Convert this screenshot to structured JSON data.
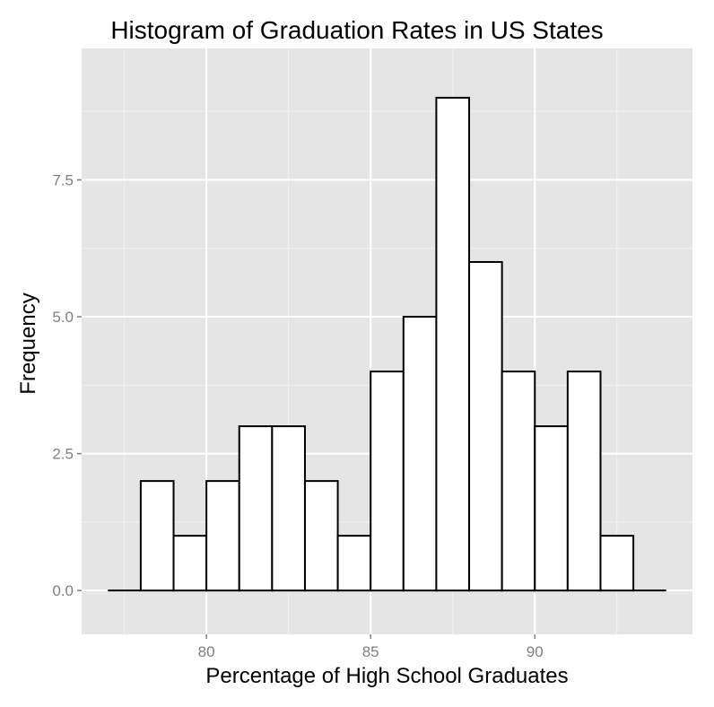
{
  "chart_data": {
    "type": "bar",
    "title": "Histogram of Graduation Rates in US States",
    "xlabel": "Percentage of High School Graduates",
    "ylabel": "Frequency",
    "bin_width": 1,
    "bins": [
      {
        "start": 77,
        "end": 78,
        "count": 0
      },
      {
        "start": 78,
        "end": 79,
        "count": 2
      },
      {
        "start": 79,
        "end": 80,
        "count": 1
      },
      {
        "start": 80,
        "end": 81,
        "count": 2
      },
      {
        "start": 81,
        "end": 82,
        "count": 3
      },
      {
        "start": 82,
        "end": 83,
        "count": 3
      },
      {
        "start": 83,
        "end": 84,
        "count": 2
      },
      {
        "start": 84,
        "end": 85,
        "count": 1
      },
      {
        "start": 85,
        "end": 86,
        "count": 4
      },
      {
        "start": 86,
        "end": 87,
        "count": 5
      },
      {
        "start": 87,
        "end": 88,
        "count": 9
      },
      {
        "start": 88,
        "end": 89,
        "count": 6
      },
      {
        "start": 89,
        "end": 90,
        "count": 4
      },
      {
        "start": 90,
        "end": 91,
        "count": 3
      },
      {
        "start": 91,
        "end": 92,
        "count": 4
      },
      {
        "start": 92,
        "end": 93,
        "count": 1
      },
      {
        "start": 93,
        "end": 94,
        "count": 0
      }
    ],
    "xlim": [
      76.2,
      94.8
    ],
    "ylim": [
      -0.8,
      9.9
    ],
    "x_ticks": [
      80,
      85,
      90
    ],
    "x_tick_labels": [
      "80",
      "85",
      "90"
    ],
    "y_ticks": [
      0,
      2.5,
      5,
      7.5
    ],
    "y_tick_labels": [
      "0.0",
      "2.5",
      "5.0",
      "7.5"
    ],
    "grid": true,
    "colors": {
      "panel_background": "#e5e5e5",
      "grid_major": "#ffffff",
      "grid_minor": "#f2f2f2",
      "bar_fill": "#ffffff",
      "bar_outline": "#000000",
      "tick_label": "#7f7f7f"
    }
  }
}
